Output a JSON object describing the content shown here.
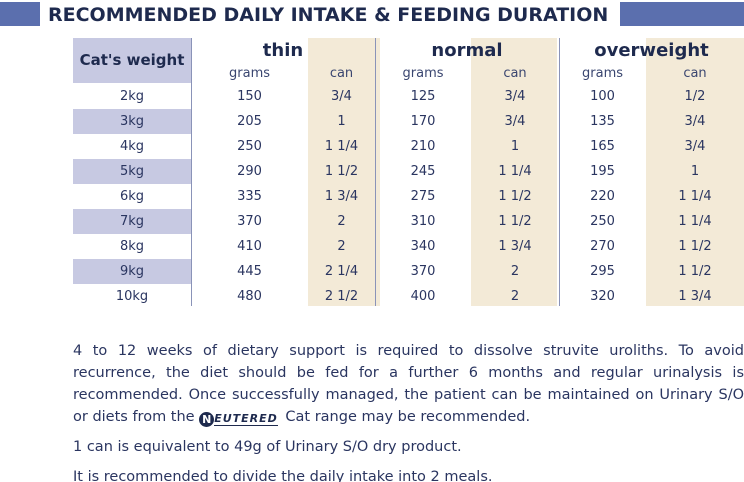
{
  "title": "RECOMMENDED DAILY INTAKE & FEEDING DURATION",
  "table": {
    "weight_header": "Cat's weight",
    "groups": [
      {
        "name": "thin",
        "sub": [
          "grams",
          "can"
        ]
      },
      {
        "name": "normal",
        "sub": [
          "grams",
          "can"
        ]
      },
      {
        "name": "overweight",
        "sub": [
          "grams",
          "can"
        ]
      }
    ],
    "rows": [
      {
        "weight": "2kg",
        "cells": [
          "150",
          "3/4",
          "125",
          "3/4",
          "100",
          "1/2"
        ]
      },
      {
        "weight": "3kg",
        "cells": [
          "205",
          "1",
          "170",
          "3/4",
          "135",
          "3/4"
        ]
      },
      {
        "weight": "4kg",
        "cells": [
          "250",
          "1 1/4",
          "210",
          "1",
          "165",
          "3/4"
        ]
      },
      {
        "weight": "5kg",
        "cells": [
          "290",
          "1 1/2",
          "245",
          "1 1/4",
          "195",
          "1"
        ]
      },
      {
        "weight": "6kg",
        "cells": [
          "335",
          "1 3/4",
          "275",
          "1 1/2",
          "220",
          "1 1/4"
        ]
      },
      {
        "weight": "7kg",
        "cells": [
          "370",
          "2",
          "310",
          "1 1/2",
          "250",
          "1 1/4"
        ]
      },
      {
        "weight": "8kg",
        "cells": [
          "410",
          "2",
          "340",
          "1 3/4",
          "270",
          "1 1/2"
        ]
      },
      {
        "weight": "9kg",
        "cells": [
          "445",
          "2 1/4",
          "370",
          "2",
          "295",
          "1 1/2"
        ]
      },
      {
        "weight": "10kg",
        "cells": [
          "480",
          "2 1/2",
          "400",
          "2",
          "320",
          "1 3/4"
        ]
      }
    ]
  },
  "notes": {
    "p1_before": "4 to 12 weeks of dietary support is required to dissolve struvite uroliths. To avoid recurrence, the diet should be fed for a further 6 months and regular urinalysis is recommended. Once successfully managed, the patient can be maintained on Urinary S/O or diets from the",
    "logo_letter": "N",
    "logo_text": "EUTERED",
    "p1_after": "Cat range may be recommended.",
    "p2": "1 can is equivalent to 49g of Urinary S/O dry product.",
    "p3": "It is recommended to divide the daily intake into 2 meals."
  }
}
